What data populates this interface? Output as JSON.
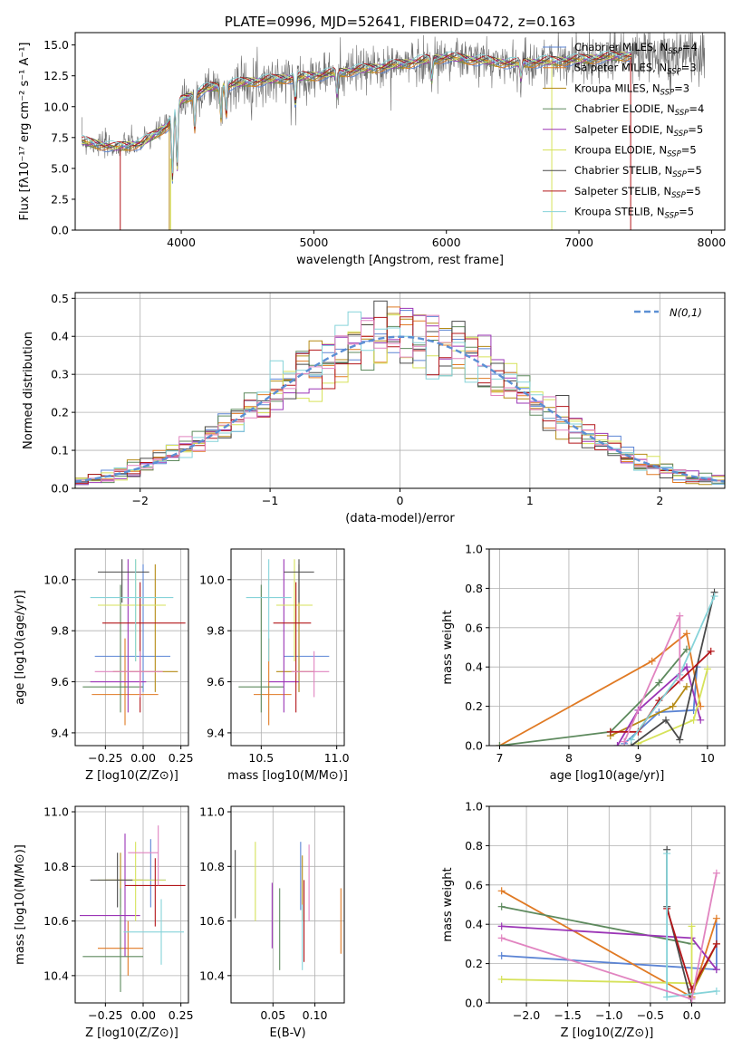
{
  "palette": [
    "#5b84d4",
    "#e07a24",
    "#b58a14",
    "#5e8a5e",
    "#9b35b6",
    "#d6e25a",
    "#4a4a4a",
    "#b3161a",
    "#86d3d9",
    "#e184c0"
  ],
  "chart_data": [
    {
      "id": "spectrum",
      "type": "line",
      "title": "PLATE=0996, MJD=52641, FIBERID=0472, z=0.163",
      "xlabel": "wavelength [Angstrom, rest frame]",
      "ylabel": "Flux [fλ10⁻¹⁷ erg cm⁻² s⁻¹ A⁻¹]",
      "xlim": [
        3200,
        8100
      ],
      "ylim": [
        0,
        16
      ],
      "xticks": [
        "4000",
        "5000",
        "6000",
        "7000",
        "8000"
      ],
      "yticks": [
        "0.0",
        "2.5",
        "5.0",
        "7.5",
        "10.0",
        "12.5",
        "15.0"
      ],
      "legend_position": "top-right",
      "legend": [
        "Chabrier MILES, NSSP=4",
        "Salpeter MILES, NSSP=3",
        "Kroupa MILES, NSSP=3",
        "Chabrier ELODIE, NSSP=4",
        "Salpeter ELODIE, NSSP=5",
        "Kroupa ELODIE, NSSP=5",
        "Chabrier STELIB, NSSP=5",
        "Salpeter STELIB, NSSP=5",
        "Kroupa STELIB, NSSP=5"
      ],
      "continuum": [
        [
          3250,
          7.2
        ],
        [
          3500,
          6.7
        ],
        [
          3700,
          7.0
        ],
        [
          3900,
          8.5
        ],
        [
          4000,
          10.5
        ],
        [
          4200,
          11.5
        ],
        [
          4500,
          12.0
        ],
        [
          5000,
          12.5
        ],
        [
          5500,
          13.2
        ],
        [
          6000,
          14.0
        ],
        [
          6500,
          13.5
        ],
        [
          7000,
          13.8
        ],
        [
          7400,
          14.2
        ]
      ]
    },
    {
      "id": "residuals",
      "type": "histogram",
      "xlabel": "(data-model)/error",
      "ylabel": "Normed distribution",
      "xlim": [
        -2.5,
        2.5
      ],
      "ylim": [
        0,
        0.515
      ],
      "xticks": [
        "−2",
        "−1",
        "0",
        "1",
        "2"
      ],
      "yticks": [
        "0.0",
        "0.1",
        "0.2",
        "0.3",
        "0.4",
        "0.5"
      ],
      "legend_position": "top-right",
      "reference_curve": "N(0,1)",
      "bin_width": 0.1
    },
    {
      "id": "age-vs-Z",
      "type": "errorbar",
      "xlabel": "Z [log10(Z/Z⊙)]",
      "ylabel": "age  [log10(age/yr)]",
      "xlim": [
        -0.45,
        0.3
      ],
      "ylim": [
        9.35,
        10.12
      ],
      "xticks": [
        "−0.25",
        "0.00",
        "0.25"
      ],
      "yticks": [
        "9.4",
        "9.6",
        "9.8",
        "10.0"
      ],
      "points": [
        {
          "x": 0.0,
          "y": 9.7,
          "xe": [
            0.32,
            0.18
          ],
          "ye": [
            0.14,
            0.36
          ]
        },
        {
          "x": -0.12,
          "y": 9.55,
          "xe": [
            0.22,
            0.22
          ],
          "ye": [
            0.12,
            0.22
          ]
        },
        {
          "x": 0.08,
          "y": 9.64,
          "xe": [
            0.28,
            0.15
          ],
          "ye": [
            0.08,
            0.42
          ]
        },
        {
          "x": -0.15,
          "y": 9.58,
          "xe": [
            0.25,
            0.15
          ],
          "ye": [
            0.1,
            0.4
          ]
        },
        {
          "x": -0.1,
          "y": 9.6,
          "xe": [
            0.25,
            0.12
          ],
          "ye": [
            0.12,
            0.48
          ]
        },
        {
          "x": -0.05,
          "y": 9.9,
          "xe": [
            0.25,
            0.2
          ],
          "ye": [
            0.22,
            0.18
          ]
        },
        {
          "x": -0.14,
          "y": 10.03,
          "xe": [
            0.16,
            0.18
          ],
          "ye": [
            0.12,
            0.05
          ]
        },
        {
          "x": -0.02,
          "y": 9.83,
          "xe": [
            0.25,
            0.3
          ],
          "ye": [
            0.35,
            0.16
          ]
        },
        {
          "x": -0.05,
          "y": 9.93,
          "xe": [
            0.3,
            0.25
          ],
          "ye": [
            0.25,
            0.15
          ]
        },
        {
          "x": -0.02,
          "y": 9.64,
          "xe": [
            0.3,
            0.15
          ],
          "ye": [
            0.1,
            0.08
          ]
        }
      ]
    },
    {
      "id": "age-vs-mass",
      "type": "errorbar",
      "xlabel": "mass [log10(M/M⊙)]",
      "ylabel": "",
      "xlim": [
        10.3,
        11.05
      ],
      "ylim": [
        9.35,
        10.12
      ],
      "xticks": [
        "10.5",
        "11.0"
      ],
      "yticks": [
        "9.4",
        "9.6",
        "9.8",
        "10.0"
      ],
      "points": [
        {
          "x": 10.75,
          "y": 9.7,
          "xe": [
            0.1,
            0.2
          ],
          "ye": [
            0.14,
            0.36
          ]
        },
        {
          "x": 10.55,
          "y": 9.55,
          "xe": [
            0.1,
            0.15
          ],
          "ye": [
            0.12,
            0.22
          ]
        },
        {
          "x": 10.75,
          "y": 9.64,
          "xe": [
            0.15,
            0.1
          ],
          "ye": [
            0.08,
            0.42
          ]
        },
        {
          "x": 10.5,
          "y": 9.58,
          "xe": [
            0.15,
            0.15
          ],
          "ye": [
            0.1,
            0.4
          ]
        },
        {
          "x": 10.65,
          "y": 9.6,
          "xe": [
            0.1,
            0.1
          ],
          "ye": [
            0.12,
            0.48
          ]
        },
        {
          "x": 10.72,
          "y": 9.9,
          "xe": [
            0.12,
            0.12
          ],
          "ye": [
            0.22,
            0.18
          ]
        },
        {
          "x": 10.75,
          "y": 10.03,
          "xe": [
            0.1,
            0.1
          ],
          "ye": [
            0.12,
            0.05
          ]
        },
        {
          "x": 10.73,
          "y": 9.83,
          "xe": [
            0.15,
            0.1
          ],
          "ye": [
            0.35,
            0.16
          ]
        },
        {
          "x": 10.55,
          "y": 9.93,
          "xe": [
            0.15,
            0.15
          ],
          "ye": [
            0.25,
            0.15
          ]
        },
        {
          "x": 10.85,
          "y": 9.64,
          "xe": [
            0.15,
            0.1
          ],
          "ye": [
            0.1,
            0.08
          ]
        }
      ]
    },
    {
      "id": "weight-vs-age",
      "type": "line",
      "xlabel": "age  [log10(age/yr)]",
      "ylabel": "mass weight",
      "xlim": [
        6.85,
        10.25
      ],
      "ylim": [
        0,
        1
      ],
      "xticks": [
        "7",
        "8",
        "9",
        "10"
      ],
      "yticks": [
        "0.0",
        "0.2",
        "0.4",
        "0.6",
        "0.8",
        "1.0"
      ],
      "series": [
        {
          "x": [
            8.8,
            9.3,
            9.8,
            9.85
          ],
          "y": [
            0.01,
            0.17,
            0.18,
            0.4
          ]
        },
        {
          "x": [
            7.0,
            9.2,
            9.7,
            9.9
          ],
          "y": [
            0.0,
            0.43,
            0.57,
            0.2
          ]
        },
        {
          "x": [
            8.6,
            9.5,
            9.7
          ],
          "y": [
            0.05,
            0.2,
            0.3
          ]
        },
        {
          "x": [
            7.0,
            8.6,
            9.3,
            9.7
          ],
          "y": [
            0.0,
            0.07,
            0.32,
            0.49
          ]
        },
        {
          "x": [
            8.7,
            9.0,
            9.7,
            9.9
          ],
          "y": [
            0.0,
            0.18,
            0.4,
            0.13
          ]
        },
        {
          "x": [
            9.0,
            9.8,
            10.0
          ],
          "y": [
            0.01,
            0.13,
            0.39
          ]
        },
        {
          "x": [
            8.9,
            9.4,
            9.6,
            10.1
          ],
          "y": [
            0.0,
            0.13,
            0.03,
            0.78
          ]
        },
        {
          "x": [
            8.6,
            9.0,
            9.3,
            10.05
          ],
          "y": [
            0.07,
            0.07,
            0.23,
            0.48
          ]
        },
        {
          "x": [
            8.9,
            9.6,
            10.1
          ],
          "y": [
            0.03,
            0.36,
            0.76
          ]
        },
        {
          "x": [
            8.8,
            9.6,
            9.6
          ],
          "y": [
            0.02,
            0.66,
            0.33
          ]
        }
      ]
    },
    {
      "id": "mass-vs-Z",
      "type": "errorbar",
      "xlabel": "Z [log10(Z/Z⊙)]",
      "ylabel": "mass [log10(M/M⊙)]",
      "xlim": [
        -0.45,
        0.3
      ],
      "ylim": [
        10.3,
        11.02
      ],
      "xticks": [
        "−0.25",
        "0.00",
        "0.25"
      ],
      "yticks": [
        "10.4",
        "10.6",
        "10.8",
        "11.0"
      ],
      "points": [
        {
          "x": 0.05,
          "y": 10.75,
          "xe": [
            0.1,
            0.1
          ],
          "ye": [
            0.1,
            0.15
          ]
        },
        {
          "x": -0.1,
          "y": 10.5,
          "xe": [
            0.2,
            0.1
          ],
          "ye": [
            0.1,
            0.1
          ]
        },
        {
          "x": -0.15,
          "y": 10.75,
          "xe": [
            0.1,
            0.15
          ],
          "ye": [
            0.1,
            0.1
          ]
        },
        {
          "x": -0.15,
          "y": 10.47,
          "xe": [
            0.25,
            0.15
          ],
          "ye": [
            0.13,
            0.25
          ]
        },
        {
          "x": -0.12,
          "y": 10.62,
          "xe": [
            0.3,
            0.1
          ],
          "ye": [
            0.15,
            0.3
          ]
        },
        {
          "x": -0.05,
          "y": 10.75,
          "xe": [
            0.25,
            0.2
          ],
          "ye": [
            0.15,
            0.14
          ]
        },
        {
          "x": -0.17,
          "y": 10.75,
          "xe": [
            0.18,
            0.1
          ],
          "ye": [
            0.1,
            0.1
          ]
        },
        {
          "x": 0.08,
          "y": 10.73,
          "xe": [
            0.2,
            0.2
          ],
          "ye": [
            0.15,
            0.1
          ]
        },
        {
          "x": 0.12,
          "y": 10.56,
          "xe": [
            0.25,
            0.15
          ],
          "ye": [
            0.12,
            0.12
          ]
        },
        {
          "x": 0.1,
          "y": 10.85,
          "xe": [
            0.2,
            0.0
          ],
          "ye": [
            0.12,
            0.1
          ]
        }
      ]
    },
    {
      "id": "mass-vs-EBV",
      "type": "errorbar",
      "xlabel": "E(B-V)",
      "ylabel": "",
      "xlim": [
        0.0,
        0.135
      ],
      "ylim": [
        10.3,
        11.02
      ],
      "xticks": [
        "0.05",
        "0.10"
      ],
      "yticks": [
        "10.4",
        "10.6",
        "10.8",
        "11.0"
      ],
      "points": [
        {
          "x": 0.083,
          "y": 10.74,
          "xe": [
            0,
            0
          ],
          "ye": [
            0.1,
            0.15
          ]
        },
        {
          "x": 0.131,
          "y": 10.6,
          "xe": [
            0,
            0
          ],
          "ye": [
            0.12,
            0.12
          ]
        },
        {
          "x": 0.085,
          "y": 10.72,
          "xe": [
            0,
            0
          ],
          "ye": [
            0.12,
            0.12
          ]
        },
        {
          "x": 0.058,
          "y": 10.52,
          "xe": [
            0,
            0
          ],
          "ye": [
            0.1,
            0.2
          ]
        },
        {
          "x": 0.049,
          "y": 10.62,
          "xe": [
            0,
            0
          ],
          "ye": [
            0.12,
            0.12
          ]
        },
        {
          "x": 0.029,
          "y": 10.75,
          "xe": [
            0,
            0
          ],
          "ye": [
            0.15,
            0.14
          ]
        },
        {
          "x": 0.005,
          "y": 10.73,
          "xe": [
            0,
            0
          ],
          "ye": [
            0.12,
            0.13
          ]
        },
        {
          "x": 0.087,
          "y": 10.6,
          "xe": [
            0,
            0
          ],
          "ye": [
            0.15,
            0.15
          ]
        },
        {
          "x": 0.085,
          "y": 10.52,
          "xe": [
            0,
            0
          ],
          "ye": [
            0.1,
            0.14
          ]
        },
        {
          "x": 0.093,
          "y": 10.74,
          "xe": [
            0,
            0
          ],
          "ye": [
            0.14,
            0.14
          ]
        }
      ]
    },
    {
      "id": "weight-vs-Z",
      "type": "line",
      "xlabel": "Z [log10(Z/Z⊙)]",
      "ylabel": "mass weight",
      "xlim": [
        -2.45,
        0.4
      ],
      "ylim": [
        0,
        1
      ],
      "xticks": [
        "−2.0",
        "−1.5",
        "−1.0",
        "−0.5",
        "0.0"
      ],
      "yticks": [
        "0.0",
        "0.2",
        "0.4",
        "0.6",
        "0.8",
        "1.0"
      ],
      "series": [
        {
          "x": [
            -2.3,
            0.3,
            0.3
          ],
          "y": [
            0.24,
            0.17,
            0.4
          ]
        },
        {
          "x": [
            -2.3,
            0.0,
            0.3
          ],
          "y": [
            0.57,
            0.03,
            0.43
          ]
        },
        {
          "x": [
            0.0,
            0.3
          ],
          "y": [
            0.05,
            0.3
          ]
        },
        {
          "x": [
            -2.3,
            0.0
          ],
          "y": [
            0.49,
            0.3
          ]
        },
        {
          "x": [
            -2.3,
            0.0,
            0.3
          ],
          "y": [
            0.39,
            0.33,
            0.17
          ]
        },
        {
          "x": [
            -2.3,
            0.0,
            0.0
          ],
          "y": [
            0.12,
            0.1,
            0.39
          ]
        },
        {
          "x": [
            -0.3,
            -0.3,
            0.0
          ],
          "y": [
            0.78,
            0.49,
            0.0
          ]
        },
        {
          "x": [
            -0.3,
            0.0,
            0.3
          ],
          "y": [
            0.48,
            0.07,
            0.3
          ]
        },
        {
          "x": [
            -0.3,
            -0.3,
            0.3
          ],
          "y": [
            0.76,
            0.03,
            0.06
          ]
        },
        {
          "x": [
            -2.3,
            0.0,
            0.3
          ],
          "y": [
            0.33,
            0.02,
            0.66
          ]
        }
      ]
    }
  ]
}
